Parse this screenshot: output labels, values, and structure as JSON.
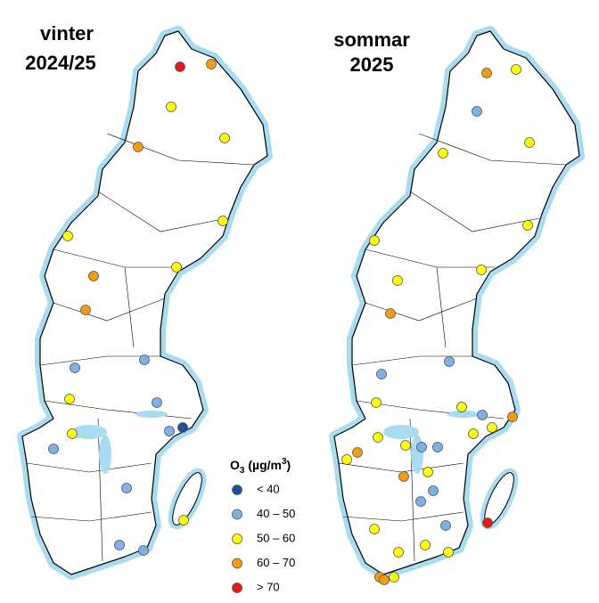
{
  "maps": [
    {
      "title": [
        "vinter",
        "2024/25"
      ]
    },
    {
      "title": [
        "sommar",
        "2025"
      ]
    }
  ],
  "legend": {
    "title": [
      "O",
      "3",
      " (µg/m",
      "3",
      ")"
    ],
    "items": [
      {
        "label": "< 40",
        "color": "#1f4e9a"
      },
      {
        "label": "40 – 50",
        "color": "#7fb0e8"
      },
      {
        "label": "50 – 60",
        "color": "#ffff00"
      },
      {
        "label": "60 – 70",
        "color": "#f39c12"
      },
      {
        "label": "> 70",
        "color": "#e41a1c"
      }
    ]
  }
}
